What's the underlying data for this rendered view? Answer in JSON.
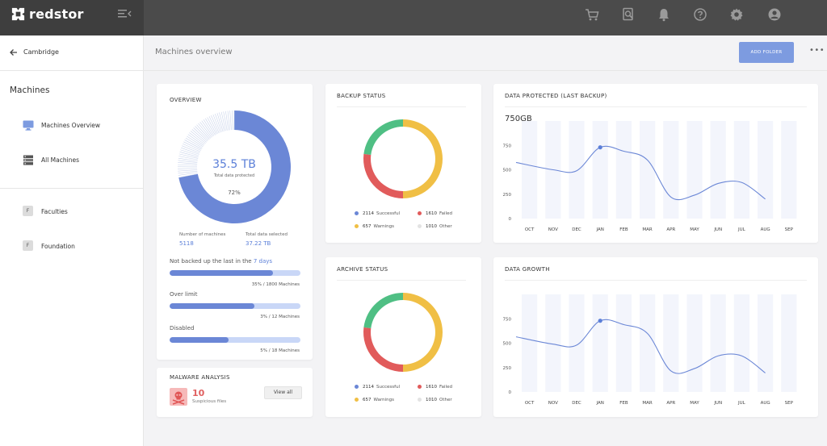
{
  "app": {
    "brand": "redstor"
  },
  "sidebar": {
    "back_label": "Cambridge",
    "section_title": "Machines",
    "items": [
      {
        "label": "Machines Overview",
        "icon": "monitor-icon"
      },
      {
        "label": "All Machines",
        "icon": "server-icon"
      }
    ],
    "groups": [
      {
        "label": "Faculties",
        "badge": "F"
      },
      {
        "label": "Foundation",
        "badge": "F"
      }
    ]
  },
  "header": {
    "title": "Machines overview",
    "add_button": "ADD FOLDER",
    "more": "•••"
  },
  "overview": {
    "title": "OVERVIEW",
    "total_value": "35.5 TB",
    "total_label": "Total data protected",
    "percent": "72%",
    "percent_value": 72,
    "machines_label": "Number of machines",
    "machines_value": "5118",
    "selected_label": "Total data selected",
    "selected_value": "37.22 TB",
    "bars": [
      {
        "label": "Not backed up the last in the",
        "highlight": "7 days",
        "sub": "35% / 1800 Machines",
        "fill": 0.79
      },
      {
        "label": "Over limit",
        "highlight": "",
        "sub": "3% / 12 Machines",
        "fill": 0.65
      },
      {
        "label": "Disabled",
        "highlight": "",
        "sub": "5% / 18 Machines",
        "fill": 0.45
      }
    ]
  },
  "malware": {
    "title": "MALWARE ANALYSIS",
    "count": "10",
    "sub": "Suspicious files",
    "button": "View all"
  },
  "backup_status": {
    "title": "BACKUP STATUS",
    "legend": [
      {
        "num": "2114",
        "label": "Successful",
        "color": "#6b87d6"
      },
      {
        "num": "1610",
        "label": "Failed",
        "color": "#e15b5b"
      },
      {
        "num": "657",
        "label": "Warnings",
        "color": "#f0bf45"
      },
      {
        "num": "1010",
        "label": "Other",
        "color": "#e3e3e3"
      }
    ]
  },
  "archive_status": {
    "title": "ARCHIVE STATUS",
    "legend": [
      {
        "num": "2114",
        "label": "Successful",
        "color": "#6b87d6"
      },
      {
        "num": "1610",
        "label": "Failed",
        "color": "#e15b5b"
      },
      {
        "num": "657",
        "label": "Warnings",
        "color": "#f0bf45"
      },
      {
        "num": "1010",
        "label": "Other",
        "color": "#e3e3e3"
      }
    ]
  },
  "data_protected": {
    "title": "DATA PROTECTED (LAST BACKUP)",
    "value": "750GB"
  },
  "data_growth": {
    "title": "DATA GROWTH"
  },
  "chart_data": [
    {
      "type": "line",
      "title": "DATA PROTECTED (LAST BACKUP)",
      "categories": [
        "OCT",
        "NOV",
        "DEC",
        "JAN",
        "FEB",
        "MAR",
        "APR",
        "MAY",
        "JUN",
        "JUL",
        "AUG",
        "SEP"
      ],
      "series": [
        {
          "values": [
            575,
            500,
            490,
            730,
            690,
            600,
            220,
            240,
            360,
            370,
            200,
            null
          ]
        }
      ],
      "yticks": [
        0,
        250,
        500,
        750
      ],
      "ylim": [
        0,
        1000
      ],
      "highlight_index": 3
    },
    {
      "type": "line",
      "title": "DATA GROWTH",
      "categories": [
        "OCT",
        "NOV",
        "DEC",
        "JAN",
        "FEB",
        "MAR",
        "APR",
        "MAY",
        "JUN",
        "JUL",
        "AUG",
        "SEP"
      ],
      "series": [
        {
          "values": [
            565,
            490,
            480,
            730,
            690,
            600,
            215,
            240,
            370,
            370,
            195,
            null
          ]
        }
      ],
      "yticks": [
        0,
        250,
        500,
        750
      ],
      "ylim": [
        0,
        1000
      ],
      "highlight_index": 3
    },
    {
      "type": "pie",
      "title": "BACKUP STATUS",
      "categories": [
        "Successful",
        "Failed",
        "Warnings",
        "Other"
      ],
      "values": [
        2114,
        1610,
        657,
        1010
      ]
    },
    {
      "type": "pie",
      "title": "ARCHIVE STATUS",
      "categories": [
        "Successful",
        "Failed",
        "Warnings",
        "Other"
      ],
      "values": [
        2114,
        1610,
        657,
        1010
      ]
    }
  ]
}
